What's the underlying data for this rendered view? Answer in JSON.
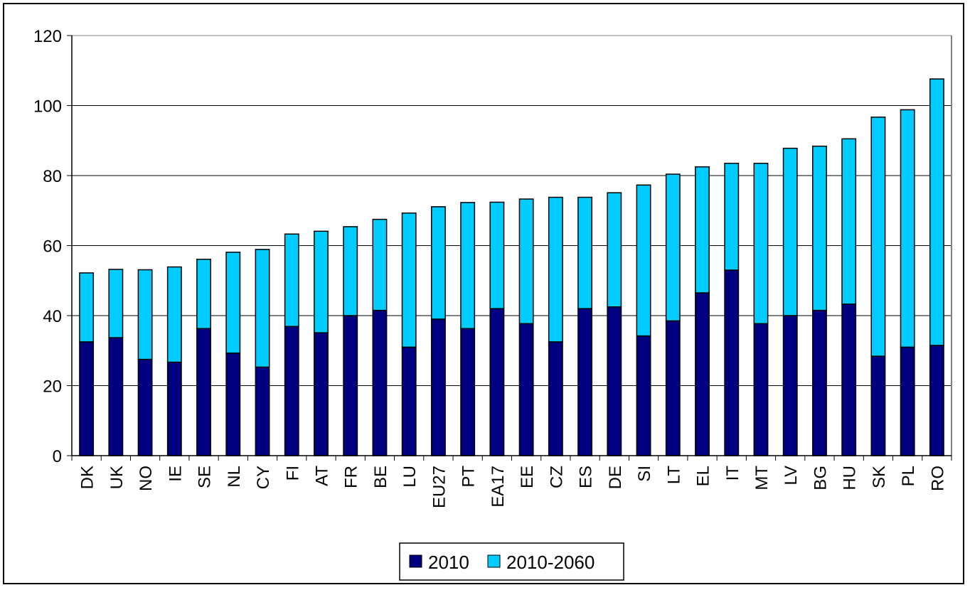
{
  "chart_data": {
    "type": "bar",
    "stacked": true,
    "categories": [
      "DK",
      "UK",
      "NO",
      "IE",
      "SE",
      "NL",
      "CY",
      "FI",
      "AT",
      "FR",
      "BE",
      "LU",
      "EU27",
      "PT",
      "EA17",
      "EE",
      "CZ",
      "ES",
      "DE",
      "SI",
      "LT",
      "EL",
      "IT",
      "MT",
      "LV",
      "BG",
      "HU",
      "SK",
      "PL",
      "RO"
    ],
    "series": [
      {
        "name": "2010",
        "color": "#000080",
        "values": [
          32.5,
          33.7,
          27.5,
          26.7,
          36.3,
          29.3,
          25.3,
          36.9,
          35.1,
          40.0,
          41.5,
          31.0,
          39.0,
          36.3,
          42.0,
          37.7,
          32.5,
          42.0,
          42.5,
          34.2,
          38.5,
          46.5,
          53.0,
          37.7,
          40.0,
          41.5,
          43.3,
          28.4,
          31.0,
          31.5
        ]
      },
      {
        "name": "2010-2060",
        "color": "#00CCFF",
        "values": [
          19.7,
          19.5,
          25.6,
          27.2,
          19.8,
          28.8,
          33.6,
          26.4,
          29.0,
          25.4,
          26.0,
          38.3,
          32.1,
          36.0,
          30.4,
          35.6,
          41.3,
          31.8,
          32.6,
          43.1,
          41.9,
          36.0,
          30.5,
          45.8,
          47.8,
          46.9,
          47.2,
          68.3,
          67.8,
          76.1
        ]
      }
    ],
    "ylim": [
      0,
      120
    ],
    "yticks": [
      0,
      20,
      40,
      60,
      80,
      100,
      120
    ],
    "grid": true,
    "legend": "bottom-center",
    "title": "",
    "xlabel": "",
    "ylabel": ""
  }
}
